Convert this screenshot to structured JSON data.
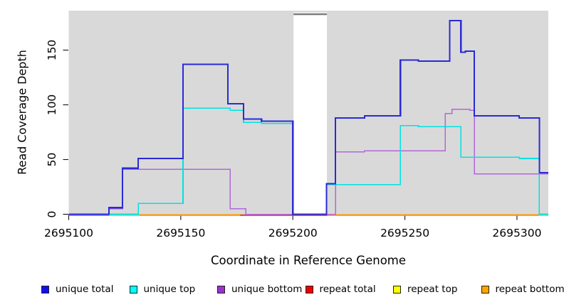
{
  "figure": {
    "background": "#FFFFFF",
    "plot_background": "#D9D9D9",
    "axis_color": "#111111",
    "mask_cap_color": "#7E7E7E"
  },
  "chart_data": {
    "type": "line",
    "subtype": "step",
    "title": "",
    "xlabel": "Coordinate in Reference Genome",
    "ylabel": "Read Coverage Depth",
    "xlim": [
      2695100,
      2695314
    ],
    "ylim": [
      0,
      186
    ],
    "x_ticks": [
      2695100,
      2695150,
      2695200,
      2695250,
      2695300
    ],
    "y_ticks": [
      0,
      50,
      100,
      150
    ],
    "grid": false,
    "legend_position": "bottom",
    "masked_region": {
      "from": 2695200.3,
      "to": 2695215.2
    },
    "series": [
      {
        "name": "unique total",
        "color": "#2A2AD8",
        "legend_fill": "#1010EE",
        "width": 2.2,
        "steps": [
          [
            2695100,
            0
          ],
          [
            2695118,
            6
          ],
          [
            2695124,
            42
          ],
          [
            2695131,
            51
          ],
          [
            2695151,
            137
          ],
          [
            2695171,
            101
          ],
          [
            2695178,
            87
          ],
          [
            2695186,
            85
          ],
          [
            2695200,
            0
          ],
          [
            2695215,
            28
          ],
          [
            2695219,
            88
          ],
          [
            2695232,
            90
          ],
          [
            2695248,
            141
          ],
          [
            2695256,
            140
          ],
          [
            2695270,
            177
          ],
          [
            2695275,
            148
          ],
          [
            2695277,
            149
          ],
          [
            2695281,
            90
          ],
          [
            2695301,
            88
          ],
          [
            2695310,
            38
          ],
          [
            2695314,
            38
          ]
        ]
      },
      {
        "name": "unique top",
        "color": "#00E2E2",
        "legend_fill": "#00FFFF",
        "width": 1.6,
        "steps": [
          [
            2695100,
            0
          ],
          [
            2695131,
            10
          ],
          [
            2695151,
            97
          ],
          [
            2695172,
            95
          ],
          [
            2695178,
            84
          ],
          [
            2695186,
            83
          ],
          [
            2695200,
            0
          ],
          [
            2695215,
            27
          ],
          [
            2695248,
            81
          ],
          [
            2695256,
            80
          ],
          [
            2695275,
            52
          ],
          [
            2695301,
            51
          ],
          [
            2695310,
            0
          ],
          [
            2695314,
            0
          ]
        ]
      },
      {
        "name": "unique bottom",
        "color": "#B266DB",
        "legend_fill": "#9A32CD",
        "width": 1.5,
        "steps": [
          [
            2695100,
            0
          ],
          [
            2695118,
            5
          ],
          [
            2695124,
            41
          ],
          [
            2695172,
            5
          ],
          [
            2695179,
            0
          ],
          [
            2695219,
            57
          ],
          [
            2695232,
            58
          ],
          [
            2695268,
            92
          ],
          [
            2695271,
            96
          ],
          [
            2695279,
            95
          ],
          [
            2695281,
            37
          ],
          [
            2695314,
            37
          ]
        ]
      },
      {
        "name": "repeat total",
        "color": "#D23B4B",
        "legend_fill": "#EE0000",
        "width": 1.5,
        "steps": [
          [
            2695100,
            0
          ],
          [
            2695314,
            0
          ]
        ]
      },
      {
        "name": "repeat top",
        "color": "#F2F20C",
        "legend_fill": "#FFFF00",
        "width": 1.5,
        "steps": [
          [
            2695100,
            0
          ],
          [
            2695314,
            0
          ]
        ]
      },
      {
        "name": "repeat bottom",
        "color": "#FF9800",
        "legend_fill": "#FFA500",
        "width": 1.8,
        "steps": [
          [
            2695100,
            0
          ],
          [
            2695314,
            0
          ]
        ]
      }
    ],
    "zero_line_segments": [
      {
        "from": 2695100,
        "to": 2695118,
        "color": "#8878E8"
      },
      {
        "from": 2695118,
        "to": 2695131.5,
        "color": "#90D89A"
      },
      {
        "from": 2695131.5,
        "to": 2695176.5,
        "color": "#FF9800"
      },
      {
        "from": 2695176.5,
        "to": 2695215.3,
        "color": "#D23B4B"
      },
      {
        "from": 2695215.3,
        "to": 2695309.8,
        "color": "#FF9800"
      },
      {
        "from": 2695309.8,
        "to": 2695314,
        "color": "#90D89A"
      }
    ]
  }
}
